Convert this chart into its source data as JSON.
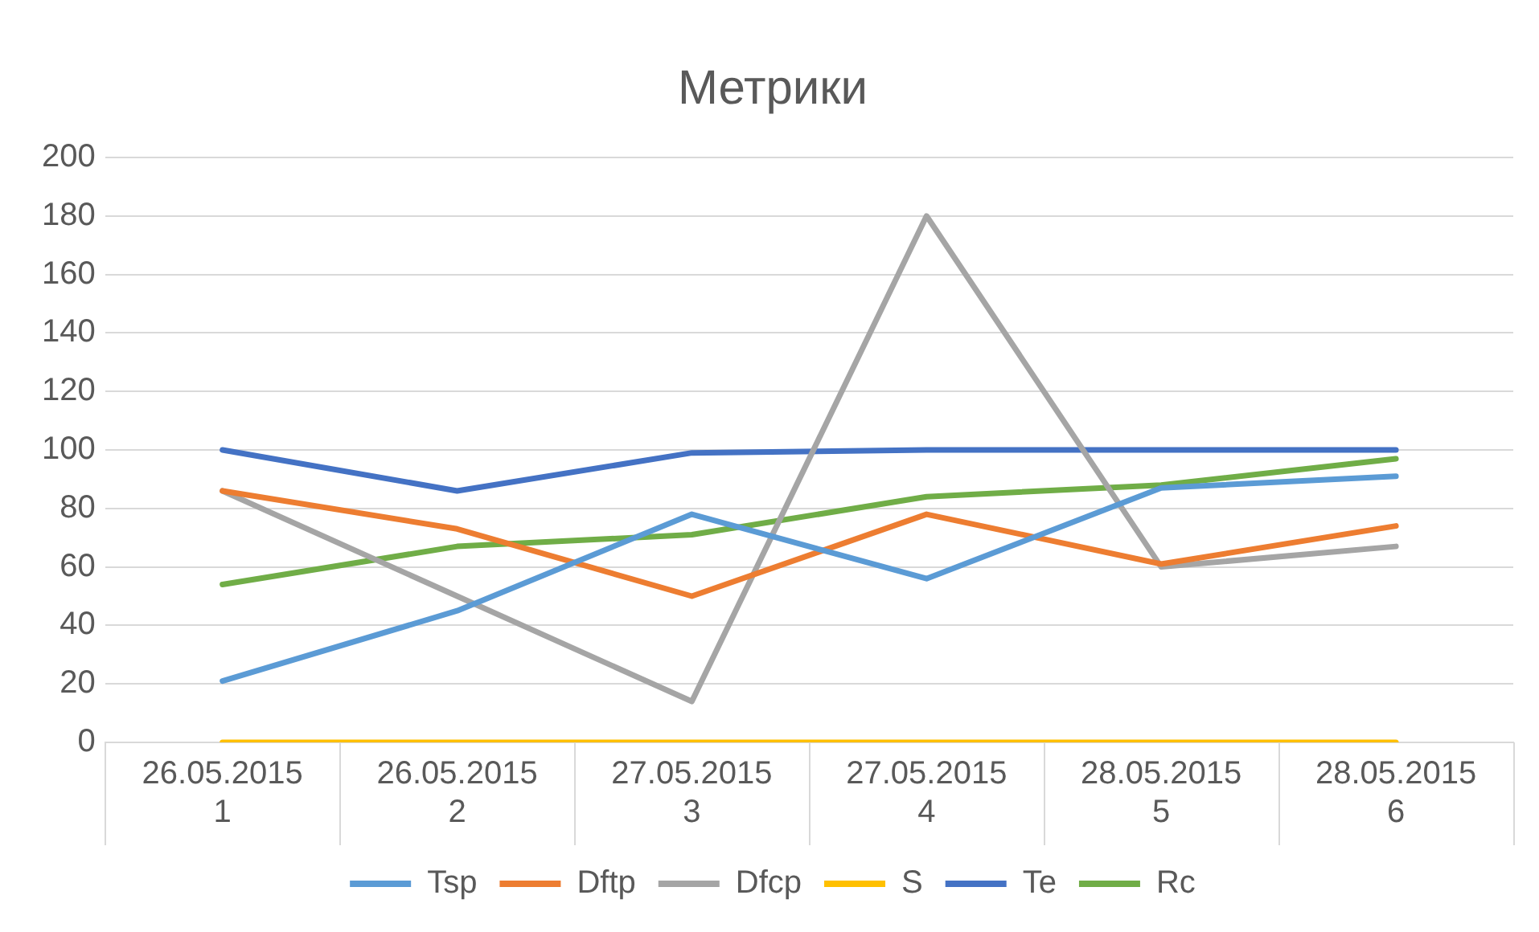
{
  "chart_data": {
    "type": "line",
    "title": "Метрики",
    "categories": [
      "26.05.2015\n1",
      "26.05.2015\n2",
      "27.05.2015\n3",
      "27.05.2015\n4",
      "28.05.2015\n5",
      "28.05.2015\n6"
    ],
    "series": [
      {
        "name": "Tsp",
        "color": "#5b9bd5",
        "values": [
          21,
          45,
          78,
          56,
          87,
          91
        ]
      },
      {
        "name": "Dftp",
        "color": "#ed7d31",
        "values": [
          86,
          73,
          50,
          78,
          61,
          74
        ]
      },
      {
        "name": "Dfcp",
        "color": "#a5a5a5",
        "values": [
          86,
          50,
          14,
          180,
          60,
          67
        ]
      },
      {
        "name": "S",
        "color": "#ffc000",
        "values": [
          0,
          0,
          0,
          0,
          0,
          0
        ]
      },
      {
        "name": "Te",
        "color": "#4472c4",
        "values": [
          100,
          86,
          99,
          100,
          100,
          100
        ]
      },
      {
        "name": "Rc",
        "color": "#70ad47",
        "values": [
          54,
          67,
          71,
          84,
          88,
          97
        ]
      }
    ],
    "ylim": [
      0,
      200
    ],
    "yticks": [
      0,
      20,
      40,
      60,
      80,
      100,
      120,
      140,
      160,
      180,
      200
    ],
    "grid": "y",
    "legend": "bottom",
    "marker": "none",
    "line_style": "solid"
  }
}
